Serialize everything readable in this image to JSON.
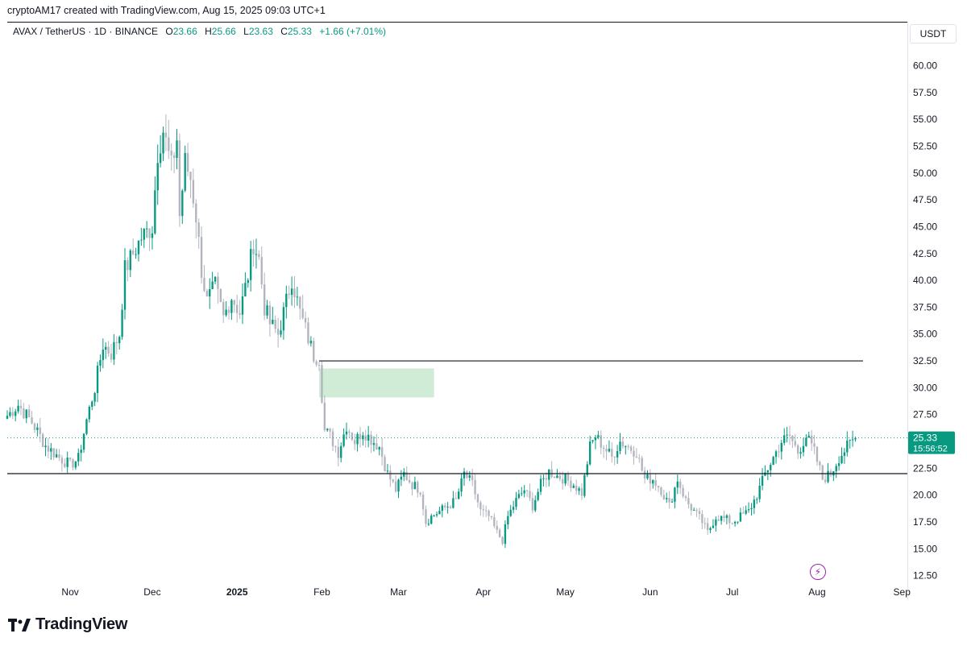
{
  "header": {
    "credit": "cryptoAM17 created with TradingView.com, Aug 15, 2025 09:03 UTC+1"
  },
  "legend": {
    "symbol": "AVAX / TetherUS · 1D · BINANCE",
    "open_label": "O",
    "open": "23.66",
    "high_label": "H",
    "high": "25.66",
    "low_label": "L",
    "low": "23.63",
    "close_label": "C",
    "close": "25.33",
    "change": "+1.66 (+7.01%)"
  },
  "currency_button": "USDT",
  "brand": {
    "name": "TradingView",
    "logo_icon": "tradingview-logo-icon"
  },
  "price_badge": {
    "price": "25.33",
    "countdown": "15:56:52"
  },
  "colors": {
    "up": "#089981",
    "down": "#b2b5be",
    "zone": "#d1ecd6",
    "line": "#131722",
    "accent": "#089981"
  },
  "chart_data": {
    "type": "candlestick",
    "symbol": "AVAX / TetherUS",
    "interval": "1D",
    "exchange": "BINANCE",
    "y_axis_ticks": [
      "60.00",
      "57.50",
      "55.00",
      "52.50",
      "50.00",
      "47.50",
      "45.00",
      "42.50",
      "40.00",
      "37.50",
      "35.00",
      "32.50",
      "30.00",
      "27.50",
      "22.50",
      "20.00",
      "17.50",
      "15.00",
      "12.50"
    ],
    "x_axis_ticks": [
      "Nov",
      "Dec",
      "2025",
      "Feb",
      "Mar",
      "Apr",
      "May",
      "Jun",
      "Jul",
      "Aug",
      "Sep"
    ],
    "ylim": [
      11.5,
      61.5
    ],
    "date_range": [
      "2024-10-09",
      "2025-09-03"
    ],
    "anchors": [
      [
        "2024-10-09",
        27.4
      ],
      [
        "2024-10-13",
        28.4
      ],
      [
        "2024-10-18",
        26.8
      ],
      [
        "2024-10-23",
        24.6
      ],
      [
        "2024-10-28",
        23.5
      ],
      [
        "2024-11-01",
        22.8
      ],
      [
        "2024-11-04",
        23.4
      ],
      [
        "2024-11-07",
        27.0
      ],
      [
        "2024-11-10",
        30.0
      ],
      [
        "2024-11-13",
        34.0
      ],
      [
        "2024-11-16",
        33.2
      ],
      [
        "2024-11-19",
        35.0
      ],
      [
        "2024-11-21",
        41.0
      ],
      [
        "2024-11-24",
        42.5
      ],
      [
        "2024-11-27",
        44.0
      ],
      [
        "2024-12-01",
        45.0
      ],
      [
        "2024-12-03",
        52.0
      ],
      [
        "2024-12-05",
        54.0
      ],
      [
        "2024-12-08",
        50.5
      ],
      [
        "2024-12-10",
        53.2
      ],
      [
        "2024-12-11",
        46.0
      ],
      [
        "2024-12-13",
        51.0
      ],
      [
        "2024-12-15",
        49.5
      ],
      [
        "2024-12-17",
        46.0
      ],
      [
        "2024-12-19",
        41.0
      ],
      [
        "2024-12-21",
        38.0
      ],
      [
        "2024-12-24",
        39.5
      ],
      [
        "2024-12-27",
        36.5
      ],
      [
        "2024-12-30",
        38.5
      ],
      [
        "2025-01-02",
        37.0
      ],
      [
        "2025-01-05",
        40.5
      ],
      [
        "2025-01-07",
        43.5
      ],
      [
        "2025-01-09",
        42.0
      ],
      [
        "2025-01-11",
        37.5
      ],
      [
        "2025-01-13",
        36.0
      ],
      [
        "2025-01-16",
        35.0
      ],
      [
        "2025-01-19",
        38.0
      ],
      [
        "2025-01-21",
        40.2
      ],
      [
        "2025-01-24",
        37.0
      ],
      [
        "2025-01-27",
        34.6
      ],
      [
        "2025-01-29",
        33.0
      ],
      [
        "2025-01-31",
        32.8
      ],
      [
        "2025-02-02",
        26.0
      ],
      [
        "2025-02-04",
        25.5
      ],
      [
        "2025-02-07",
        24.0
      ],
      [
        "2025-02-10",
        26.5
      ],
      [
        "2025-02-13",
        25.0
      ],
      [
        "2025-02-16",
        26.0
      ],
      [
        "2025-02-19",
        25.2
      ],
      [
        "2025-02-22",
        24.5
      ],
      [
        "2025-02-25",
        22.0
      ],
      [
        "2025-02-28",
        20.5
      ],
      [
        "2025-03-03",
        22.0
      ],
      [
        "2025-03-06",
        21.0
      ],
      [
        "2025-03-09",
        20.5
      ],
      [
        "2025-03-11",
        17.5
      ],
      [
        "2025-03-13",
        18.0
      ],
      [
        "2025-03-16",
        18.5
      ],
      [
        "2025-03-19",
        19.0
      ],
      [
        "2025-03-22",
        19.5
      ],
      [
        "2025-03-25",
        22.0
      ],
      [
        "2025-03-28",
        21.0
      ],
      [
        "2025-03-31",
        18.5
      ],
      [
        "2025-04-03",
        18.0
      ],
      [
        "2025-04-06",
        16.5
      ],
      [
        "2025-04-08",
        15.8
      ],
      [
        "2025-04-10",
        18.0
      ],
      [
        "2025-04-13",
        19.5
      ],
      [
        "2025-04-16",
        20.5
      ],
      [
        "2025-04-19",
        19.0
      ],
      [
        "2025-04-22",
        21.0
      ],
      [
        "2025-04-25",
        22.2
      ],
      [
        "2025-04-28",
        21.8
      ],
      [
        "2025-05-01",
        21.5
      ],
      [
        "2025-05-04",
        21.0
      ],
      [
        "2025-05-07",
        20.2
      ],
      [
        "2025-05-10",
        24.5
      ],
      [
        "2025-05-12",
        25.5
      ],
      [
        "2025-05-15",
        24.5
      ],
      [
        "2025-05-18",
        23.5
      ],
      [
        "2025-05-21",
        25.0
      ],
      [
        "2025-05-24",
        24.5
      ],
      [
        "2025-05-27",
        24.0
      ],
      [
        "2025-05-30",
        21.5
      ],
      [
        "2025-06-02",
        21.5
      ],
      [
        "2025-06-05",
        20.5
      ],
      [
        "2025-06-08",
        19.0
      ],
      [
        "2025-06-11",
        21.5
      ],
      [
        "2025-06-14",
        19.5
      ],
      [
        "2025-06-17",
        18.5
      ],
      [
        "2025-06-20",
        17.5
      ],
      [
        "2025-06-22",
        16.5
      ],
      [
        "2025-06-25",
        18.0
      ],
      [
        "2025-06-28",
        17.8
      ],
      [
        "2025-07-01",
        17.5
      ],
      [
        "2025-07-04",
        18.0
      ],
      [
        "2025-07-07",
        18.5
      ],
      [
        "2025-07-10",
        20.0
      ],
      [
        "2025-07-13",
        22.0
      ],
      [
        "2025-07-16",
        23.5
      ],
      [
        "2025-07-19",
        25.0
      ],
      [
        "2025-07-22",
        25.5
      ],
      [
        "2025-07-25",
        24.0
      ],
      [
        "2025-07-28",
        25.5
      ],
      [
        "2025-07-31",
        24.0
      ],
      [
        "2025-08-03",
        21.5
      ],
      [
        "2025-08-06",
        22.0
      ],
      [
        "2025-08-09",
        23.5
      ],
      [
        "2025-08-12",
        24.5
      ],
      [
        "2025-08-15",
        25.33
      ]
    ],
    "horizontal_lines": [
      {
        "price": 32.5,
        "from": "2025-01-31",
        "to": "2025-09-03"
      },
      {
        "price": 22.0,
        "from": "2024-10-09",
        "to": "2025-09-03"
      }
    ],
    "zones": [
      {
        "from": "2025-01-31",
        "to": "2025-03-14",
        "low": 29.1,
        "high": 31.8
      }
    ],
    "last_price": 25.33
  }
}
